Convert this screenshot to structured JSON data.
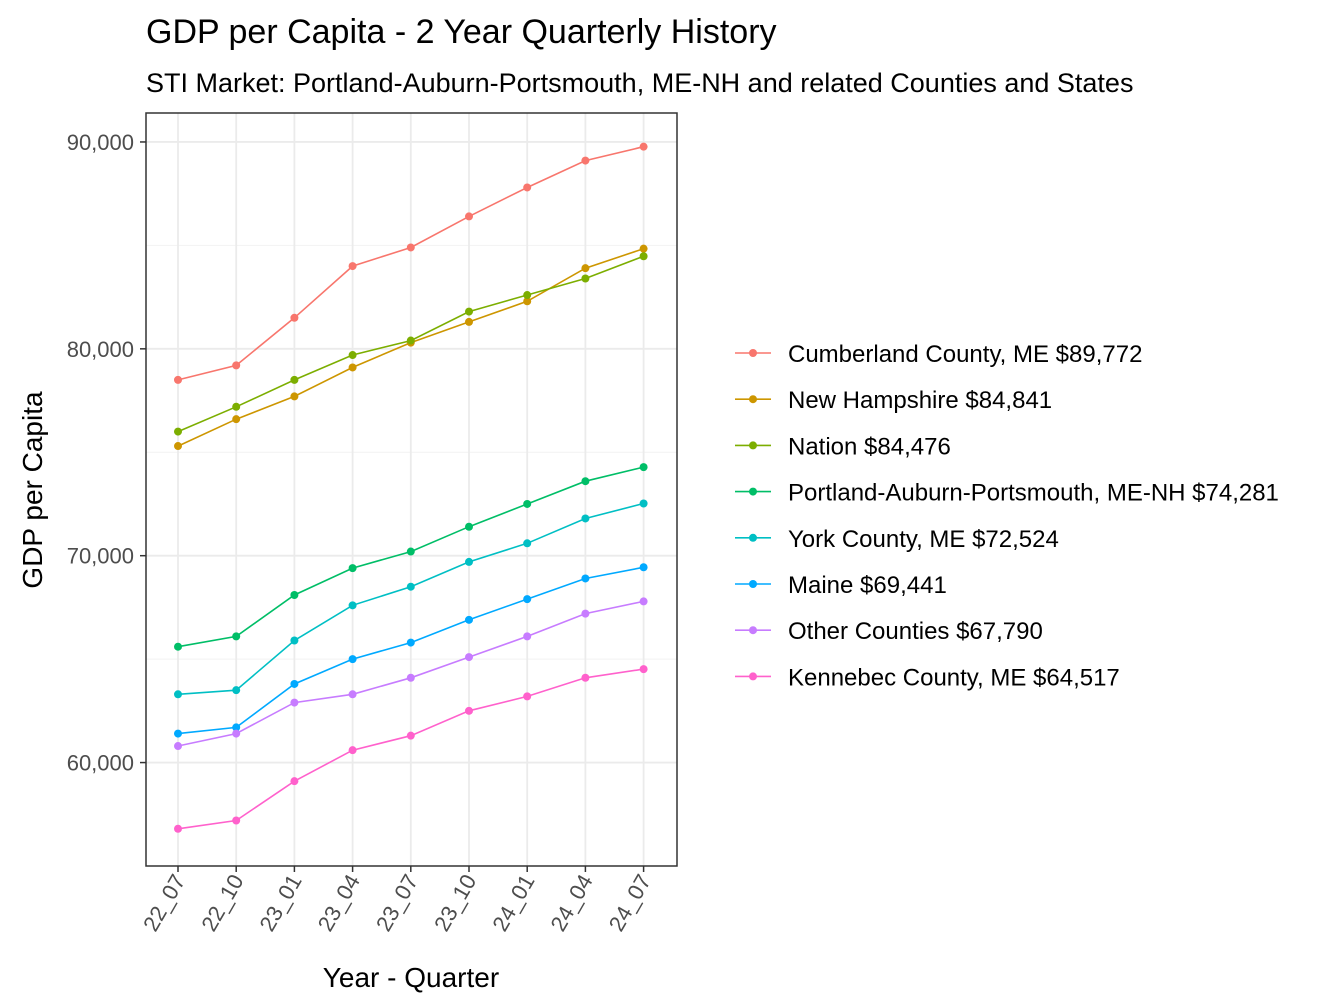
{
  "chart_data": {
    "type": "line",
    "title": "GDP per Capita - 2 Year Quarterly History",
    "subtitle": "STI Market: Portland-Auburn-Portsmouth, ME-NH and related Counties and States",
    "xlabel": "Year - Quarter",
    "ylabel": "GDP per Capita",
    "categories": [
      "22_07",
      "22_10",
      "23_01",
      "23_04",
      "23_07",
      "23_10",
      "24_01",
      "24_04",
      "24_07"
    ],
    "ylim": [
      55000,
      91400
    ],
    "yticks": [
      60000,
      70000,
      80000,
      90000
    ],
    "ytick_labels": [
      "60,000",
      "70,000",
      "80,000",
      "90,000"
    ],
    "grid": true,
    "legend_position": "right",
    "series": [
      {
        "name": "Cumberland County, ME $89,772",
        "color": "#F8766D",
        "values": [
          78500,
          79200,
          81500,
          84000,
          84900,
          86400,
          87800,
          89100,
          89772
        ]
      },
      {
        "name": "New Hampshire $84,841",
        "color": "#CD9600",
        "values": [
          75300,
          76600,
          77700,
          79100,
          80300,
          81300,
          82300,
          83900,
          84841
        ]
      },
      {
        "name": "Nation $84,476",
        "color": "#7CAE00",
        "values": [
          76000,
          77200,
          78500,
          79700,
          80400,
          81800,
          82600,
          83400,
          84476
        ]
      },
      {
        "name": "Portland-Auburn-Portsmouth, ME-NH $74,281",
        "color": "#00BE67",
        "values": [
          65600,
          66100,
          68100,
          69400,
          70200,
          71400,
          72500,
          73600,
          74281
        ]
      },
      {
        "name": "York County, ME $72,524",
        "color": "#00BFC4",
        "values": [
          63300,
          63500,
          65900,
          67600,
          68500,
          69700,
          70600,
          71800,
          72524
        ]
      },
      {
        "name": "Maine $69,441",
        "color": "#00A9FF",
        "values": [
          61400,
          61700,
          63800,
          65000,
          65800,
          66900,
          67900,
          68900,
          69441
        ]
      },
      {
        "name": "Other Counties $67,790",
        "color": "#C77CFF",
        "values": [
          60800,
          61400,
          62900,
          63300,
          64100,
          65100,
          66100,
          67200,
          67790
        ]
      },
      {
        "name": "Kennebec County, ME $64,517",
        "color": "#FF61CC",
        "values": [
          56800,
          57200,
          59100,
          60600,
          61300,
          62500,
          63200,
          64100,
          64517
        ]
      }
    ]
  }
}
